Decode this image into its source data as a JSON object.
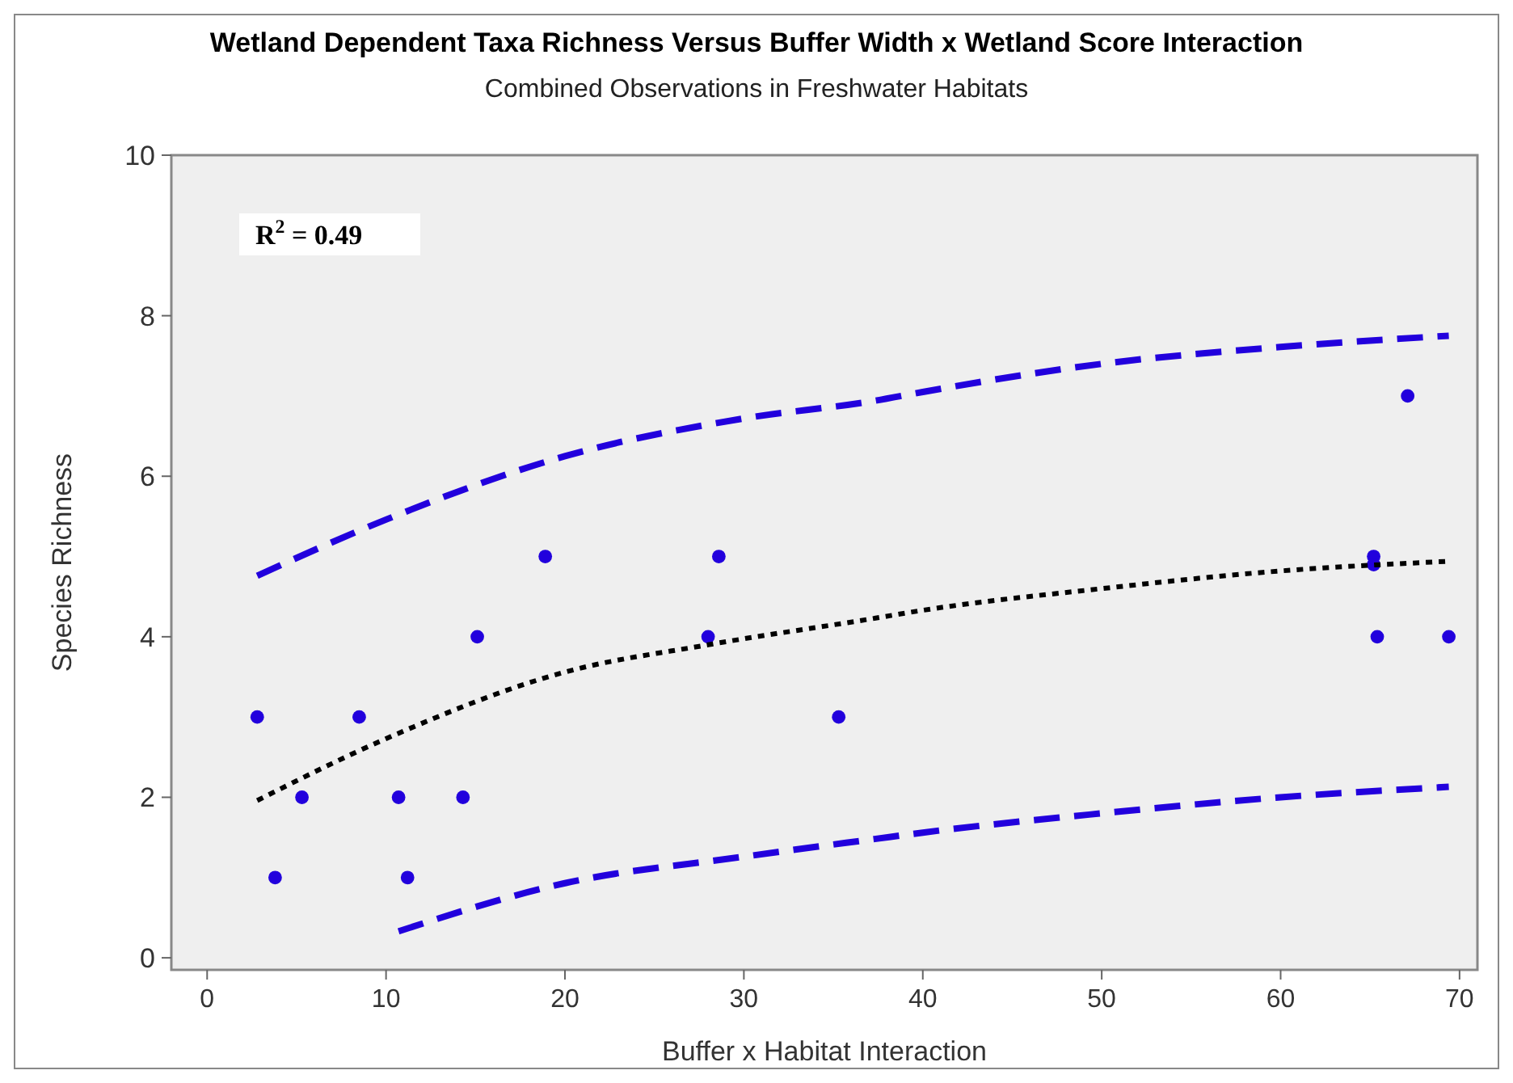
{
  "chart_data": {
    "type": "scatter",
    "title": "Wetland Dependent Taxa Richness Versus Buffer Width x Wetland Score Interaction",
    "subtitle": "Combined Observations in Freshwater Habitats",
    "xlabel": "Buffer x Habitat Interaction",
    "ylabel": "Species Richness",
    "annotations": [
      "R$^{2}$ = 0.49"
    ],
    "xlim": [
      -2,
      71
    ],
    "ylim": [
      -0.15,
      10
    ],
    "xticks": [
      0,
      10,
      20,
      30,
      40,
      50,
      60,
      70
    ],
    "yticks": [
      0,
      2,
      4,
      6,
      8,
      10
    ],
    "grid": false,
    "series": [
      {
        "color": "#2200dd",
        "marker": "circle",
        "x": [
          2.8,
          3.8,
          5.3,
          8.5,
          10.7,
          11.2,
          14.3,
          15.1,
          18.9,
          28.0,
          28.6,
          35.3,
          65.2,
          65.2,
          65.4,
          67.1,
          69.4
        ],
        "values": [
          3,
          1,
          2,
          3,
          2,
          1,
          2,
          4,
          5,
          4,
          5,
          3,
          5,
          4.9,
          4,
          7,
          4
        ]
      },
      {
        "type": "line",
        "color": "#000000",
        "line_style": "dotted",
        "marker": "none",
        "x": [
          2.8,
          10,
          20,
          28,
          37.3,
          40,
          50,
          60,
          69.4
        ],
        "values": [
          1.96,
          2.73,
          3.56,
          3.9,
          4.23,
          4.33,
          4.6,
          4.82,
          4.94
        ]
      },
      {
        "type": "line",
        "color": "#2200dd",
        "line_style": "dashed",
        "marker": "none",
        "x": [
          2.8,
          10,
          20,
          30,
          37.3,
          40,
          50,
          60,
          69.4
        ],
        "values": [
          4.76,
          5.46,
          6.25,
          6.72,
          6.94,
          7.05,
          7.4,
          7.61,
          7.75
        ]
      },
      {
        "type": "line",
        "color": "#2200dd",
        "line_style": "dashed",
        "marker": "none",
        "x": [
          10.7,
          20,
          30,
          37.3,
          40,
          50,
          60,
          69.4
        ],
        "values": [
          0.33,
          0.93,
          1.26,
          1.48,
          1.56,
          1.8,
          2.0,
          2.13
        ]
      }
    ]
  }
}
